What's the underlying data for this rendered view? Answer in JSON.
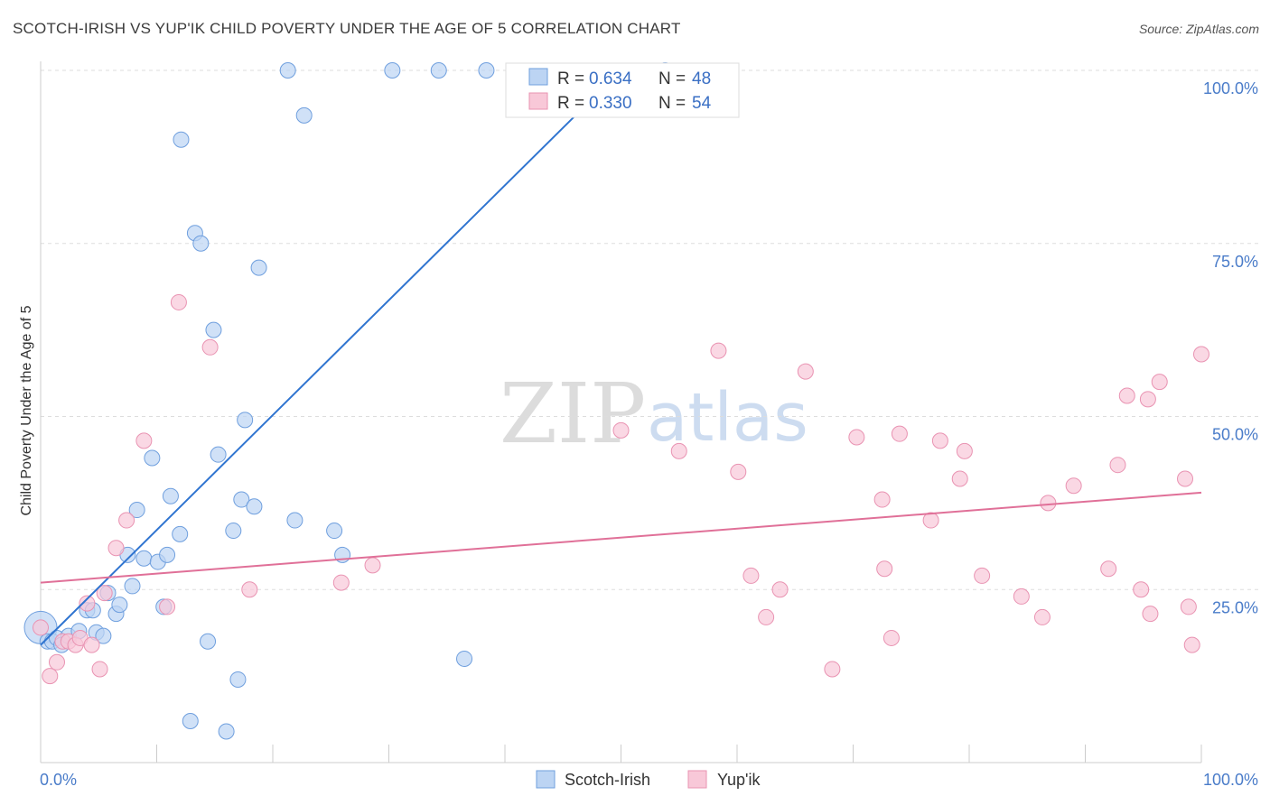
{
  "title": "SCOTCH-IRISH VS YUP'IK CHILD POVERTY UNDER THE AGE OF 5 CORRELATION CHART",
  "source": "Source: ZipAtlas.com",
  "watermark": {
    "part1": "ZIP",
    "part2": "atlas"
  },
  "colors": {
    "blue_fill": "#bcd4f3",
    "blue_stroke": "#6f9fde",
    "blue_line": "#2f74d0",
    "pink_fill": "#f8c8d8",
    "pink_stroke": "#e993b2",
    "pink_line": "#e07098",
    "grid": "#dddddd",
    "tick_text": "#4a7cc9"
  },
  "legend": {
    "r_label": "R =",
    "n_label": "N =",
    "rows": [
      {
        "r": "0.634",
        "n": "48"
      },
      {
        "r": "0.330",
        "n": "54"
      }
    ]
  },
  "bottom_legend": [
    "Scotch-Irish",
    "Yup'ik"
  ],
  "chart_data": {
    "type": "scatter",
    "title": "SCOTCH-IRISH VS YUP'IK CHILD POVERTY UNDER THE AGE OF 5 CORRELATION CHART",
    "xlabel": "",
    "ylabel": "Child Poverty Under the Age of 5",
    "xlim": [
      0,
      100
    ],
    "ylim": [
      0,
      100
    ],
    "x_tick_labels": [
      "0.0%",
      "100.0%"
    ],
    "y_tick_labels": [
      {
        "value": 25,
        "label": "25.0%"
      },
      {
        "value": 50,
        "label": "50.0%"
      },
      {
        "value": 75,
        "label": "75.0%"
      },
      {
        "value": 100,
        "label": "100.0%"
      }
    ],
    "grid": "horizontal dashed",
    "legend_position": "top-center",
    "series": [
      {
        "name": "Scotch-Irish",
        "r": 0.634,
        "n": 48,
        "trend": {
          "x0": 0,
          "y0": 17.0,
          "x1": 50,
          "y1": 100.0
        },
        "points": [
          [
            0.0,
            19.5
          ],
          [
            0.6,
            17.5
          ],
          [
            1.0,
            17.5
          ],
          [
            1.4,
            18.0
          ],
          [
            1.8,
            17.0
          ],
          [
            2.4,
            18.3
          ],
          [
            3.3,
            19.0
          ],
          [
            4.0,
            22.0
          ],
          [
            4.5,
            22.0
          ],
          [
            4.8,
            18.8
          ],
          [
            5.4,
            18.3
          ],
          [
            5.8,
            24.5
          ],
          [
            6.5,
            21.5
          ],
          [
            6.8,
            22.8
          ],
          [
            7.5,
            30.0
          ],
          [
            7.9,
            25.5
          ],
          [
            8.3,
            36.5
          ],
          [
            8.9,
            29.5
          ],
          [
            9.6,
            44.0
          ],
          [
            10.1,
            29.0
          ],
          [
            10.6,
            22.5
          ],
          [
            10.9,
            30.0
          ],
          [
            11.2,
            38.5
          ],
          [
            12.0,
            33.0
          ],
          [
            12.1,
            90.0
          ],
          [
            12.9,
            6.0
          ],
          [
            13.3,
            76.5
          ],
          [
            13.8,
            75.0
          ],
          [
            14.4,
            17.5
          ],
          [
            14.9,
            62.5
          ],
          [
            15.3,
            44.5
          ],
          [
            16.0,
            4.5
          ],
          [
            16.6,
            33.5
          ],
          [
            17.0,
            12.0
          ],
          [
            17.3,
            38.0
          ],
          [
            17.6,
            49.5
          ],
          [
            18.4,
            37.0
          ],
          [
            18.8,
            71.5
          ],
          [
            21.3,
            100.0
          ],
          [
            21.9,
            35.0
          ],
          [
            22.7,
            93.5
          ],
          [
            25.3,
            33.5
          ],
          [
            26.0,
            30.0
          ],
          [
            30.3,
            100.0
          ],
          [
            34.3,
            100.0
          ],
          [
            36.5,
            15.0
          ],
          [
            38.4,
            100.0
          ],
          [
            53.8,
            100.0
          ]
        ]
      },
      {
        "name": "Yup'ik",
        "r": 0.33,
        "n": 54,
        "trend": {
          "x0": 0,
          "y0": 26.0,
          "x1": 100,
          "y1": 39.0
        },
        "points": [
          [
            0.0,
            19.5
          ],
          [
            0.8,
            12.5
          ],
          [
            1.4,
            14.5
          ],
          [
            1.9,
            17.5
          ],
          [
            2.4,
            17.5
          ],
          [
            3.0,
            17.0
          ],
          [
            3.4,
            18.0
          ],
          [
            4.0,
            23.0
          ],
          [
            4.4,
            17.0
          ],
          [
            5.1,
            13.5
          ],
          [
            5.5,
            24.5
          ],
          [
            6.5,
            31.0
          ],
          [
            7.4,
            35.0
          ],
          [
            8.9,
            46.5
          ],
          [
            10.9,
            22.5
          ],
          [
            11.9,
            66.5
          ],
          [
            14.6,
            60.0
          ],
          [
            18.0,
            25.0
          ],
          [
            25.9,
            26.0
          ],
          [
            28.6,
            28.5
          ],
          [
            50.0,
            48.0
          ],
          [
            55.0,
            45.0
          ],
          [
            58.4,
            59.5
          ],
          [
            60.1,
            42.0
          ],
          [
            61.2,
            27.0
          ],
          [
            62.5,
            21.0
          ],
          [
            63.7,
            25.0
          ],
          [
            65.9,
            56.5
          ],
          [
            68.2,
            13.5
          ],
          [
            70.3,
            47.0
          ],
          [
            72.5,
            38.0
          ],
          [
            72.7,
            28.0
          ],
          [
            73.3,
            18.0
          ],
          [
            74.0,
            47.5
          ],
          [
            76.7,
            35.0
          ],
          [
            77.5,
            46.5
          ],
          [
            79.2,
            41.0
          ],
          [
            79.6,
            45.0
          ],
          [
            81.1,
            27.0
          ],
          [
            84.5,
            24.0
          ],
          [
            86.3,
            21.0
          ],
          [
            86.8,
            37.5
          ],
          [
            89.0,
            40.0
          ],
          [
            92.0,
            28.0
          ],
          [
            92.8,
            43.0
          ],
          [
            93.6,
            53.0
          ],
          [
            94.8,
            25.0
          ],
          [
            95.4,
            52.5
          ],
          [
            95.6,
            21.5
          ],
          [
            96.4,
            55.0
          ],
          [
            98.6,
            41.0
          ],
          [
            98.9,
            22.5
          ],
          [
            99.2,
            17.0
          ],
          [
            100.0,
            59.0
          ]
        ]
      }
    ]
  }
}
